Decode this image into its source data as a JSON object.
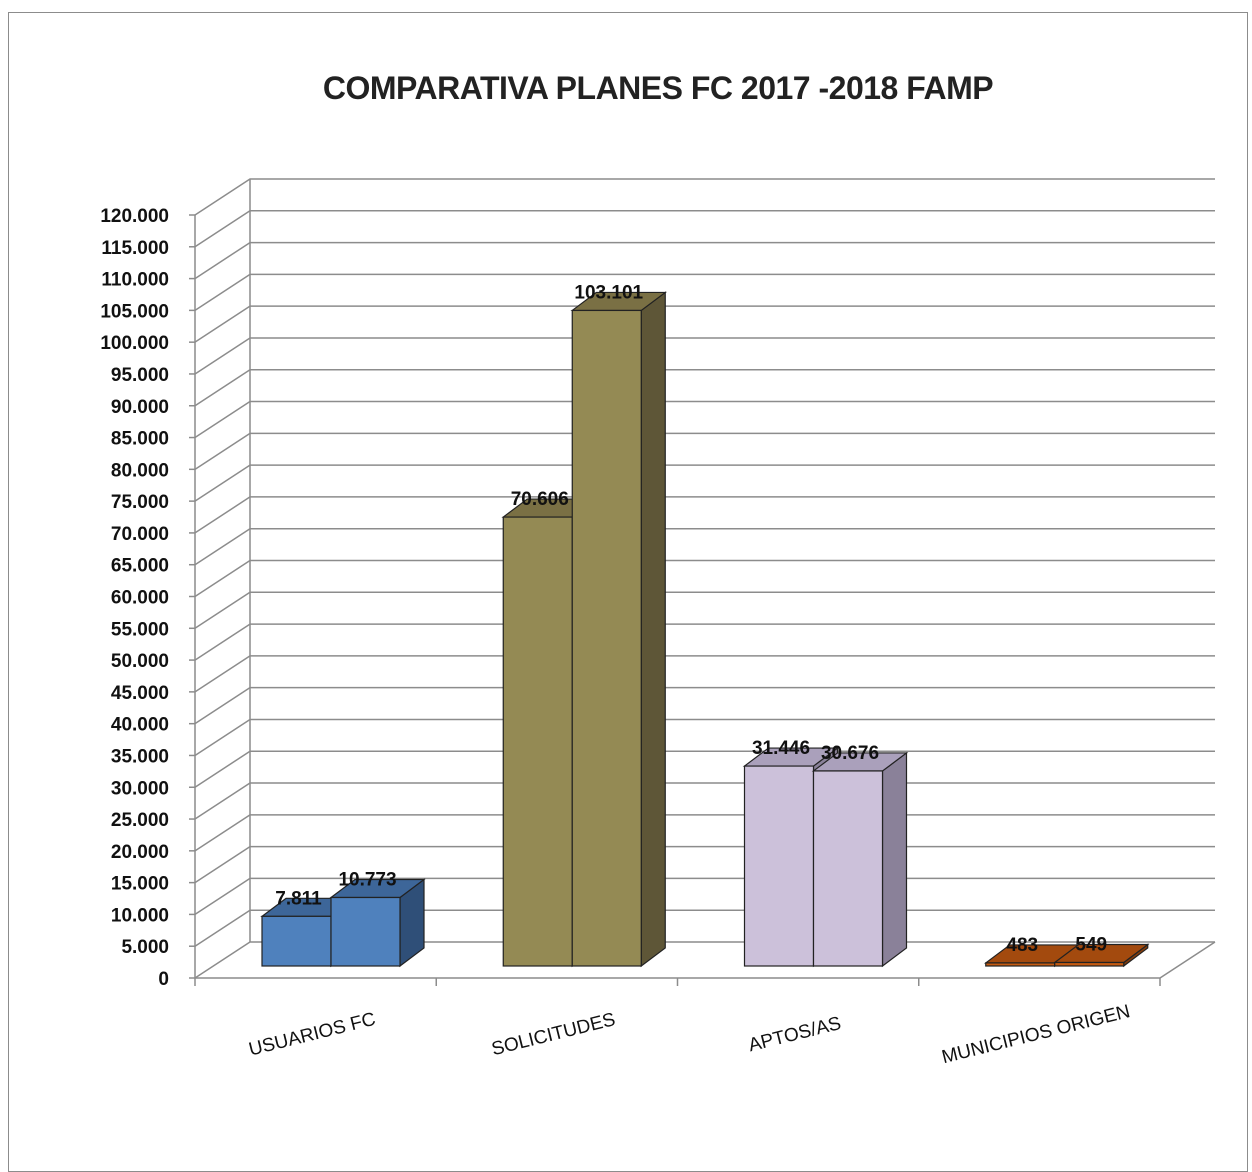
{
  "chart_data": {
    "type": "bar",
    "title": "COMPARATIVA PLANES FC 2017 -2018 FAMP",
    "xlabel": "",
    "ylabel": "",
    "categories": [
      "USUARIOS FC",
      "SOLICITUDES",
      "APTOS/AS",
      "MUNICIPIOS ORIGEN"
    ],
    "series": [
      {
        "values": [
          7811,
          70606,
          31446,
          483
        ]
      },
      {
        "values": [
          10773,
          103101,
          30676,
          549
        ]
      }
    ],
    "data_labels": [
      [
        "7.811",
        "70.606",
        "31.446",
        "483"
      ],
      [
        "10.773",
        "103.101",
        "30.676",
        "549"
      ]
    ],
    "ylim": [
      0,
      120000
    ],
    "yticks": [
      "0",
      "5.000",
      "10.000",
      "15.000",
      "20.000",
      "25.000",
      "30.000",
      "35.000",
      "40.000",
      "45.000",
      "50.000",
      "55.000",
      "60.000",
      "65.000",
      "70.000",
      "75.000",
      "80.000",
      "85.000",
      "90.000",
      "95.000",
      "100.000",
      "105.000",
      "110.000",
      "115.000",
      "120.000"
    ],
    "grid": true,
    "legend": "none",
    "three_d": true,
    "colors": {
      "categories": [
        {
          "front": "#4f81bd",
          "side": "#2f4f78",
          "top": "#3d6699"
        },
        {
          "front": "#948a54",
          "side": "#5e5637",
          "top": "#7a7044"
        },
        {
          "front": "#ccc1da",
          "side": "#8a8199",
          "top": "#aaa0bb"
        },
        {
          "front": "#c55a11",
          "side": "#843c0c",
          "top": "#a34a0e"
        }
      ],
      "gridline": "#8c8c8c",
      "outline": "#222222"
    }
  }
}
